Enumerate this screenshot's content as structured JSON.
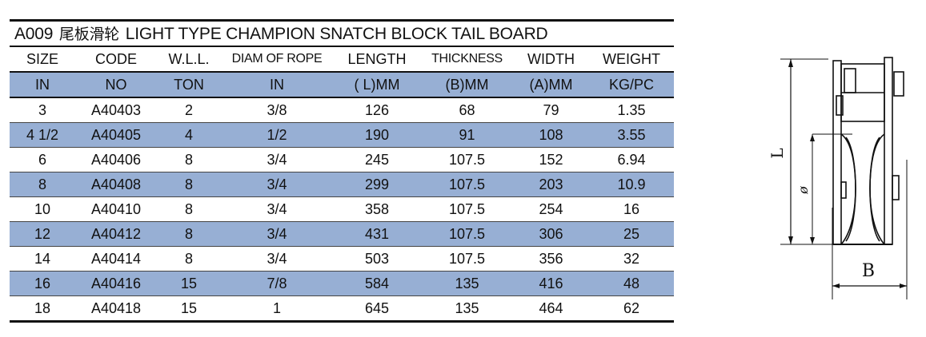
{
  "title": {
    "code": "A009",
    "chinese": "尾板滑轮",
    "english": "LIGHT TYPE CHAMPION SNATCH BLOCK TAIL BOARD"
  },
  "headers": [
    "SIZE",
    "CODE",
    "W.L.L.",
    "DIAM OF ROPE",
    "LENGTH",
    "THICKNESS",
    "WIDTH",
    "WEIGHT"
  ],
  "units": [
    "IN",
    "NO",
    "TON",
    "IN",
    "( L)MM",
    "(B)MM",
    "(A)MM",
    "KG/PC"
  ],
  "rows": [
    [
      "3",
      "A40403",
      "2",
      "3/8",
      "126",
      "68",
      "79",
      "1.35"
    ],
    [
      "4 1/2",
      "A40405",
      "4",
      "1/2",
      "190",
      "91",
      "108",
      "3.55"
    ],
    [
      "6",
      "A40406",
      "8",
      "3/4",
      "245",
      "107.5",
      "152",
      "6.94"
    ],
    [
      "8",
      "A40408",
      "8",
      "3/4",
      "299",
      "107.5",
      "203",
      "10.9"
    ],
    [
      "10",
      "A40410",
      "8",
      "3/4",
      "358",
      "107.5",
      "254",
      "16"
    ],
    [
      "12",
      "A40412",
      "8",
      "3/4",
      "431",
      "107.5",
      "306",
      "25"
    ],
    [
      "14",
      "A40414",
      "8",
      "3/4",
      "503",
      "107.5",
      "356",
      "32"
    ],
    [
      "16",
      "A40416",
      "15",
      "7/8",
      "584",
      "135",
      "416",
      "48"
    ],
    [
      "18",
      "A40418",
      "15",
      "1",
      "645",
      "135",
      "464",
      "62"
    ]
  ],
  "diagram": {
    "label_length": "L",
    "label_diameter": "ø",
    "label_thickness": "B"
  },
  "colors": {
    "band": "#97afd4",
    "rule": "#111111"
  }
}
